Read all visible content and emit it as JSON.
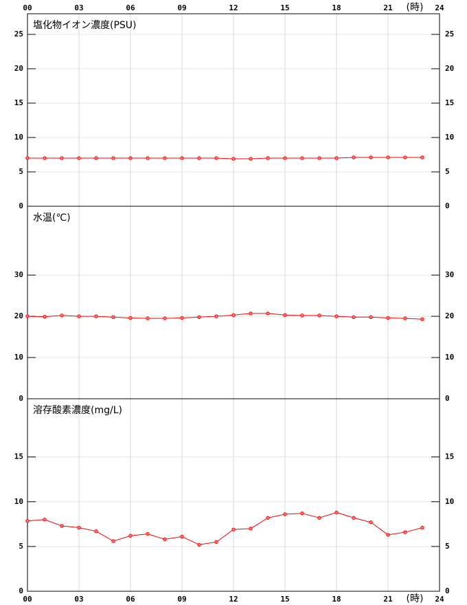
{
  "chart_data": [
    {
      "type": "line",
      "title": "塩化物イオン濃度(PSU)",
      "xlabel": "(時)",
      "x": [
        0,
        1,
        2,
        3,
        4,
        5,
        6,
        7,
        8,
        9,
        10,
        11,
        12,
        13,
        14,
        15,
        16,
        17,
        18,
        19,
        20,
        21,
        22,
        23
      ],
      "values": [
        7.0,
        7.0,
        7.0,
        7.0,
        7.0,
        7.0,
        7.0,
        7.0,
        7.0,
        7.0,
        7.0,
        7.0,
        6.9,
        6.9,
        7.0,
        7.0,
        7.0,
        7.0,
        7.0,
        7.1,
        7.1,
        7.1,
        7.1,
        7.1
      ],
      "color": "#ff0000",
      "xlim": [
        0,
        24
      ],
      "xticks": [
        {
          "value": 0,
          "label": "00"
        },
        {
          "value": 3,
          "label": "03"
        },
        {
          "value": 6,
          "label": "06"
        },
        {
          "value": 9,
          "label": "09"
        },
        12,
        15,
        18,
        21,
        24
      ],
      "ylim": [
        0,
        28
      ],
      "yticks": [
        0,
        5,
        10,
        15,
        20,
        25
      ],
      "grid": true
    },
    {
      "type": "line",
      "title": "水温(℃)",
      "x": [
        0,
        1,
        2,
        3,
        4,
        5,
        6,
        7,
        8,
        9,
        10,
        11,
        12,
        13,
        14,
        15,
        16,
        17,
        18,
        19,
        20,
        21,
        22,
        23
      ],
      "values": [
        20.0,
        19.9,
        20.2,
        20.0,
        20.0,
        19.8,
        19.6,
        19.5,
        19.5,
        19.6,
        19.8,
        20.0,
        20.3,
        20.7,
        20.7,
        20.3,
        20.2,
        20.2,
        20.0,
        19.8,
        19.8,
        19.6,
        19.5,
        19.3
      ],
      "color": "#ff0000",
      "xlim": [
        0,
        24
      ],
      "xticks": [
        {
          "value": 0,
          "label": "00"
        },
        {
          "value": 3,
          "label": "03"
        },
        {
          "value": 6,
          "label": "06"
        },
        {
          "value": 9,
          "label": "09"
        },
        12,
        15,
        18,
        21,
        24
      ],
      "ylim": [
        0,
        46.7
      ],
      "yticks": [
        0,
        10,
        20,
        30
      ],
      "grid": true
    },
    {
      "type": "line",
      "title": "溶存酸素濃度(mg/L)",
      "xlabel": "(時)",
      "x": [
        0,
        1,
        2,
        3,
        4,
        5,
        6,
        7,
        8,
        9,
        10,
        11,
        12,
        13,
        14,
        15,
        16,
        17,
        18,
        19,
        20,
        21,
        22,
        23
      ],
      "values": [
        7.85,
        8.0,
        7.3,
        7.1,
        6.7,
        5.6,
        6.2,
        6.4,
        5.8,
        6.1,
        5.2,
        5.5,
        6.9,
        7.0,
        8.2,
        8.6,
        8.7,
        8.2,
        8.8,
        8.2,
        7.7,
        6.3,
        6.6,
        7.1
      ],
      "color": "#ff0000",
      "xlim": [
        0,
        24
      ],
      "xticks": [
        {
          "value": 0,
          "label": "00"
        },
        {
          "value": 3,
          "label": "03"
        },
        {
          "value": 6,
          "label": "06"
        },
        {
          "value": 9,
          "label": "09"
        },
        12,
        15,
        18,
        21,
        24
      ],
      "ylim": [
        0,
        21.5
      ],
      "yticks": [
        0,
        5,
        10,
        15
      ],
      "grid": true
    }
  ]
}
